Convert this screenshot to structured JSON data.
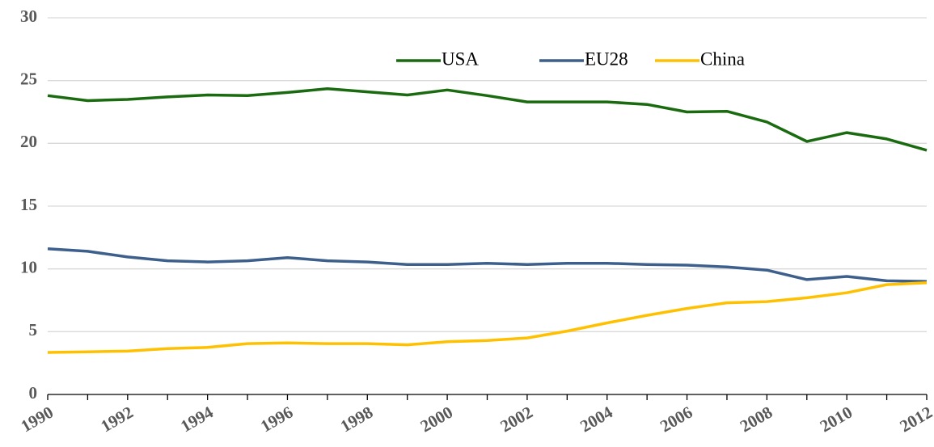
{
  "chart_data": {
    "type": "line",
    "x": [
      1990,
      1991,
      1992,
      1993,
      1994,
      1995,
      1996,
      1997,
      1998,
      1999,
      2000,
      2001,
      2002,
      2003,
      2004,
      2005,
      2006,
      2007,
      2008,
      2009,
      2010,
      2011,
      2012
    ],
    "series": [
      {
        "name": "USA",
        "color": "#1a6b10",
        "values": [
          23.8,
          23.4,
          23.5,
          23.7,
          23.85,
          23.8,
          24.05,
          24.35,
          24.1,
          23.85,
          24.25,
          23.8,
          23.3,
          23.3,
          23.3,
          23.1,
          22.5,
          22.55,
          21.7,
          20.15,
          20.85,
          20.35,
          19.45
        ]
      },
      {
        "name": "EU28",
        "color": "#3d5f8c",
        "values": [
          11.6,
          11.4,
          10.95,
          10.65,
          10.55,
          10.65,
          10.9,
          10.65,
          10.55,
          10.35,
          10.35,
          10.45,
          10.35,
          10.45,
          10.45,
          10.35,
          10.3,
          10.15,
          9.9,
          9.15,
          9.4,
          9.05,
          9.0
        ]
      },
      {
        "name": "China",
        "color": "#ffc000",
        "values": [
          3.35,
          3.4,
          3.45,
          3.65,
          3.75,
          4.05,
          4.1,
          4.05,
          4.05,
          3.95,
          4.2,
          4.3,
          4.5,
          5.05,
          5.7,
          6.3,
          6.85,
          7.3,
          7.4,
          7.7,
          8.1,
          8.75,
          8.9
        ]
      }
    ],
    "xlim": [
      1990,
      2012
    ],
    "xticks": [
      1990,
      1992,
      1994,
      1996,
      1998,
      2000,
      2002,
      2004,
      2006,
      2008,
      2010,
      2012
    ],
    "ylim": [
      0,
      30
    ],
    "yticks": [
      0,
      5,
      10,
      15,
      20,
      25,
      30
    ],
    "grid": true,
    "legend": "top"
  }
}
